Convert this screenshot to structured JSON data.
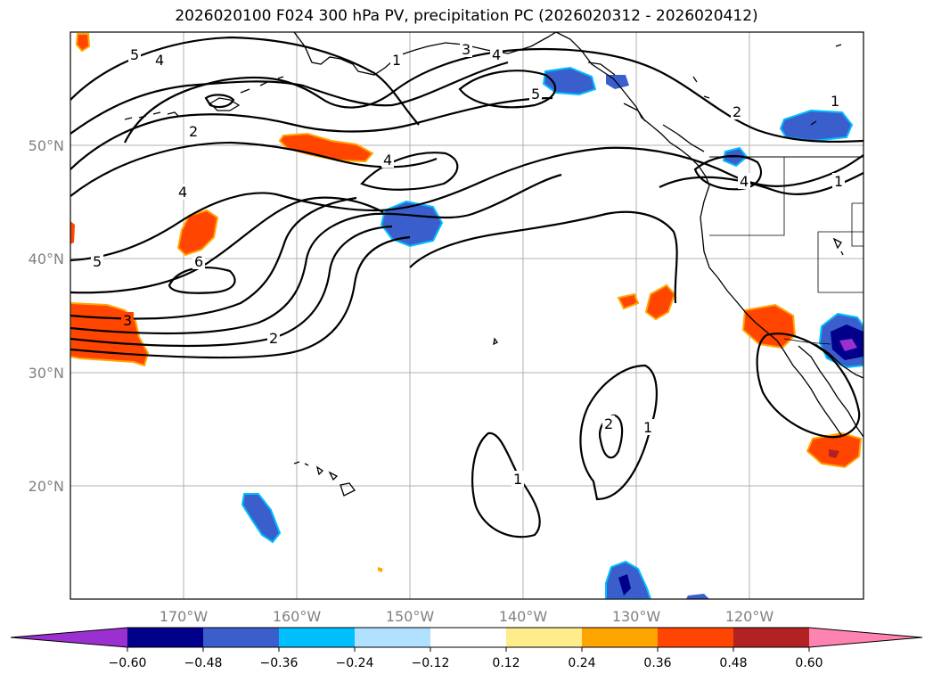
{
  "title": "2026020100 F024 300 hPa PV, precipitation PC (2026020312 - 2026020412)",
  "lat_labels": [
    "50°N",
    "40°N",
    "30°N",
    "20°N"
  ],
  "lon_labels": [
    "170°W",
    "160°W",
    "150°W",
    "140°W",
    "130°W",
    "120°W"
  ],
  "contour_labels": [
    "5",
    "4",
    "1",
    "3",
    "4",
    "5",
    "1",
    "2",
    "2",
    "4",
    "4",
    "4",
    "1",
    "5",
    "6",
    "3",
    "2",
    "2",
    "1",
    "1"
  ],
  "colorbar": {
    "ticks": [
      "−0.60",
      "−0.48",
      "−0.36",
      "−0.24",
      "−0.12",
      "0.12",
      "0.24",
      "0.36",
      "0.48",
      "0.60"
    ],
    "colors": [
      "#9b30d0",
      "#00008b",
      "#3a5fcd",
      "#00bfff",
      "#b0e2ff",
      "#ffffff",
      "#ffec8b",
      "#ffa500",
      "#ff4500",
      "#b22222",
      "#ff83b0"
    ]
  },
  "colors": {
    "neg_strong": "#00008b",
    "neg_mid": "#3a5fcd",
    "neg_light": "#00bfff",
    "neg_extreme": "#9b30d0",
    "pos_mid": "#ff4500",
    "pos_light": "#ffa500",
    "pos_strong": "#b22222"
  }
}
